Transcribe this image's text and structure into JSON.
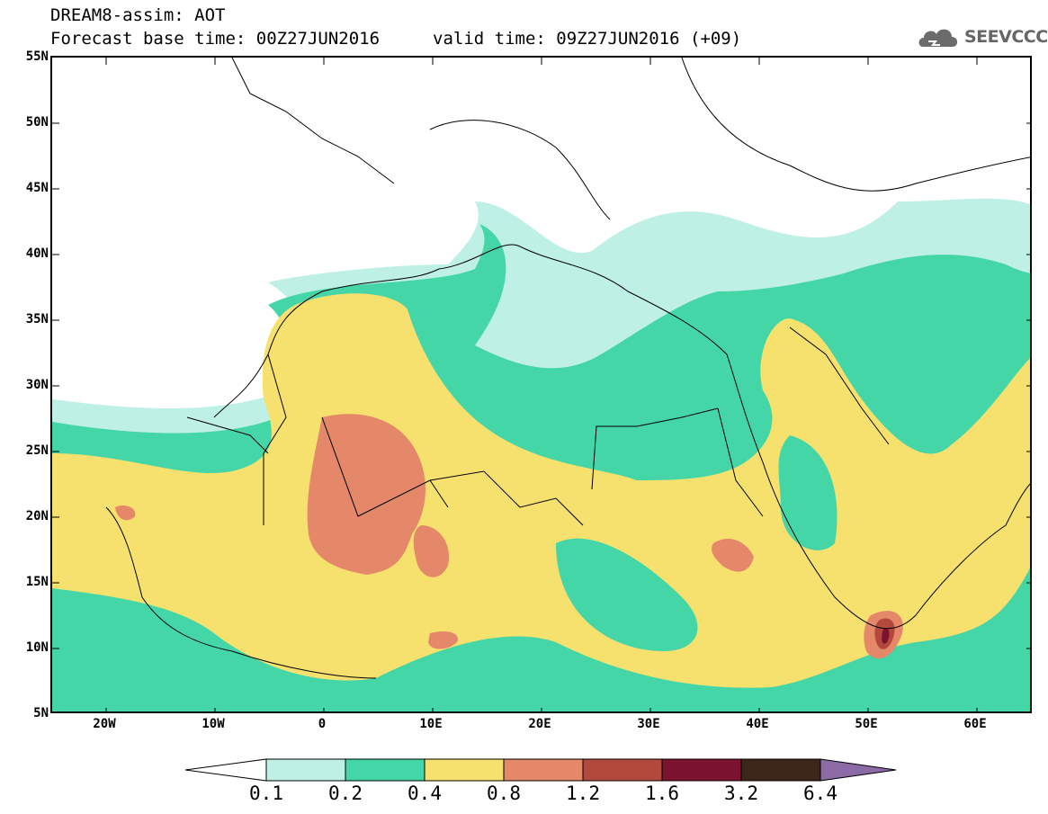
{
  "header": {
    "title": "DREAM8-assim: AOT",
    "base_time": "Forecast base time: 00Z27JUN2016",
    "valid_time": "valid time: 09Z27JUN2016 (+09)",
    "logo_text": "SEEVCCC"
  },
  "map": {
    "lat_labels": [
      "55N",
      "50N",
      "45N",
      "40N",
      "35N",
      "30N",
      "25N",
      "20N",
      "15N",
      "10N",
      "5N"
    ],
    "lon_labels": [
      "20W",
      "10W",
      "0",
      "10E",
      "20E",
      "30E",
      "40E",
      "50E",
      "60E"
    ],
    "lat_range": [
      5,
      55
    ],
    "lon_range": [
      -25,
      65
    ]
  },
  "colorbar": {
    "colors": [
      "#ffffff",
      "#bff0e6",
      "#45d6a8",
      "#f6e16e",
      "#e5886a",
      "#b2493c",
      "#7a1230",
      "#3c2718",
      "#8c6aa6"
    ],
    "labels": [
      "0.1",
      "0.2",
      "0.4",
      "0.8",
      "1.2",
      "1.6",
      "3.2",
      "6.4"
    ]
  }
}
